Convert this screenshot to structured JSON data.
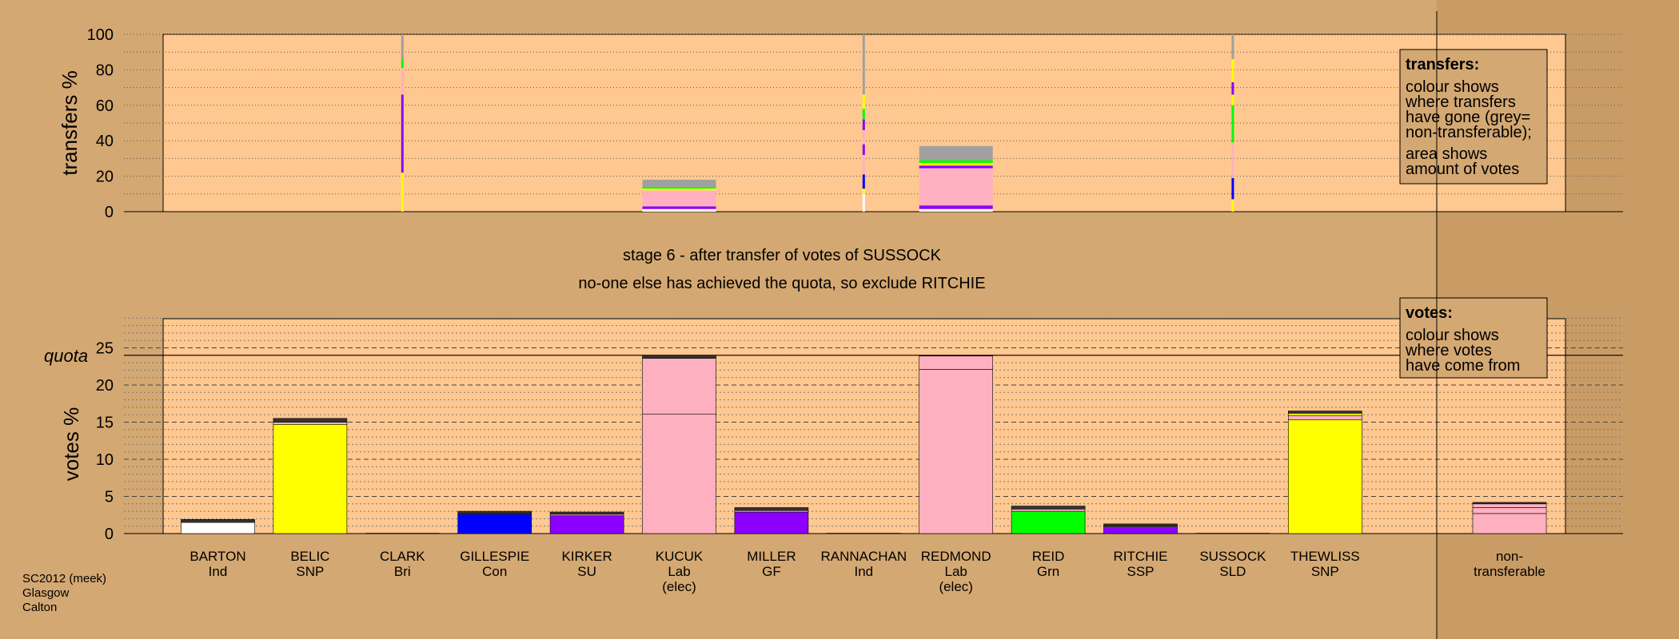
{
  "colors": {
    "background": "#d4a872",
    "plot_fill": "#ffc890",
    "Ind": "#ffffff",
    "SNP": "#ffff00",
    "Bri": "#000000",
    "Con": "#0000ff",
    "SU": "#8b00ff",
    "Lab": "#ffb0c0",
    "GF": "#8b00ff",
    "Grn": "#00ff00",
    "SSP": "#8b00ff",
    "SLD": "#ffcc00",
    "nontransferable": "#a0a0a0"
  },
  "chart_data": [
    {
      "type": "bar",
      "ylabel": "transfers %",
      "ylim": [
        0,
        100
      ],
      "yticks": [
        0,
        20,
        40,
        60,
        80,
        100
      ],
      "grid": true,
      "categories": [
        "BARTON",
        "BELIC",
        "CLARK",
        "GILLESPIE",
        "KIRKER",
        "KUCUK",
        "MILLER",
        "RANNACHAN",
        "REDMOND",
        "REID",
        "RITCHIE",
        "SUSSOCK",
        "THEWLISS"
      ],
      "bars": [
        {
          "candidate": "KUCUK",
          "segments": [
            {
              "value": 1.5,
              "color": "#ffffff"
            },
            {
              "value": 1.5,
              "color": "#8b00ff"
            },
            {
              "value": 9,
              "color": "#ffb0c0"
            },
            {
              "value": 1,
              "color": "#ffff00"
            },
            {
              "value": 1,
              "color": "#00ff00"
            },
            {
              "value": 4,
              "color": "#a0a0a0"
            }
          ]
        },
        {
          "candidate": "REDMOND",
          "segments": [
            {
              "value": 1.5,
              "color": "#ffffff"
            },
            {
              "value": 2,
              "color": "#8b00ff"
            },
            {
              "value": 21,
              "color": "#ffb0c0"
            },
            {
              "value": 1.5,
              "color": "#8b00ff"
            },
            {
              "value": 1.5,
              "color": "#ffff00"
            },
            {
              "value": 1.5,
              "color": "#00ff00"
            },
            {
              "value": 8,
              "color": "#a0a0a0"
            }
          ]
        }
      ],
      "lines": [
        {
          "candidate": "CLARK",
          "segments": [
            {
              "value": 22,
              "color": "#ffff00"
            },
            {
              "value": 44,
              "color": "#8b00ff"
            },
            {
              "value": 15,
              "color": "#ffb0c0"
            },
            {
              "value": 5,
              "color": "#00ff00"
            },
            {
              "value": 14,
              "color": "#a0a0a0"
            }
          ]
        },
        {
          "candidate": "RANNACHAN",
          "segments": [
            {
              "value": 10,
              "color": "#ffffff"
            },
            {
              "value": 3,
              "color": "#ffff00"
            },
            {
              "value": 8,
              "color": "#0000ff"
            },
            {
              "value": 11,
              "color": "#ffb0c0"
            },
            {
              "value": 6,
              "color": "#8b00ff"
            },
            {
              "value": 8,
              "color": "#ffb0c0"
            },
            {
              "value": 6,
              "color": "#8b00ff"
            },
            {
              "value": 6,
              "color": "#00ff00"
            },
            {
              "value": 8,
              "color": "#ffff00"
            },
            {
              "value": 34,
              "color": "#a0a0a0"
            }
          ]
        },
        {
          "candidate": "SUSSOCK",
          "segments": [
            {
              "value": 7,
              "color": "#ffff00"
            },
            {
              "value": 12,
              "color": "#0000ff"
            },
            {
              "value": 20,
              "color": "#ffb0c0"
            },
            {
              "value": 21,
              "color": "#00ff00"
            },
            {
              "value": 6,
              "color": "#ffff00"
            },
            {
              "value": 7,
              "color": "#8b00ff"
            },
            {
              "value": 13,
              "color": "#ffff00"
            },
            {
              "value": 14,
              "color": "#a0a0a0"
            }
          ]
        }
      ]
    },
    {
      "type": "bar",
      "ylabel": "votes %",
      "ylim": [
        0,
        29
      ],
      "yticks": [
        0,
        5,
        10,
        15,
        20,
        25
      ],
      "quota": 24,
      "quota_label": "quota",
      "grid": true,
      "categories": [
        {
          "name": "BARTON",
          "party": "Ind"
        },
        {
          "name": "BELIC",
          "party": "SNP"
        },
        {
          "name": "CLARK",
          "party": "Bri"
        },
        {
          "name": "GILLESPIE",
          "party": "Con"
        },
        {
          "name": "KIRKER",
          "party": "SU"
        },
        {
          "name": "KUCUK",
          "party": "Lab",
          "note": "(elec)"
        },
        {
          "name": "MILLER",
          "party": "GF"
        },
        {
          "name": "RANNACHAN",
          "party": "Ind"
        },
        {
          "name": "REDMOND",
          "party": "Lab",
          "note": "(elec)"
        },
        {
          "name": "REID",
          "party": "Grn"
        },
        {
          "name": "RITCHIE",
          "party": "SSP"
        },
        {
          "name": "SUSSOCK",
          "party": "SLD"
        },
        {
          "name": "THEWLISS",
          "party": "SNP"
        }
      ],
      "bars": [
        {
          "candidate": "BARTON",
          "segments": [
            {
              "value": 1.5,
              "color": "#ffffff"
            },
            {
              "value": 0.1,
              "color": "#ffb0c0"
            },
            {
              "value": 0.3,
              "color": "#333333"
            }
          ]
        },
        {
          "candidate": "BELIC",
          "segments": [
            {
              "value": 14.7,
              "color": "#ffff00"
            },
            {
              "value": 0.3,
              "color": "#ffb0c0"
            },
            {
              "value": 0.5,
              "color": "#333333"
            }
          ]
        },
        {
          "candidate": "CLARK",
          "segments": [
            {
              "value": 0.05,
              "color": "#000000"
            }
          ]
        },
        {
          "candidate": "GILLESPIE",
          "segments": [
            {
              "value": 2.6,
              "color": "#0000ff"
            },
            {
              "value": 0.1,
              "color": "#ffb0c0"
            },
            {
              "value": 0.3,
              "color": "#333333"
            }
          ]
        },
        {
          "candidate": "KIRKER",
          "segments": [
            {
              "value": 2.4,
              "color": "#8b00ff"
            },
            {
              "value": 0.2,
              "color": "#ffb0c0"
            },
            {
              "value": 0.3,
              "color": "#333333"
            }
          ]
        },
        {
          "candidate": "KUCUK",
          "segments": [
            {
              "value": 16.1,
              "color": "#ffb0c0"
            },
            {
              "value": 7.5,
              "color": "#ffb0c0"
            },
            {
              "value": 0.4,
              "color": "#333333"
            }
          ]
        },
        {
          "candidate": "MILLER",
          "segments": [
            {
              "value": 2.9,
              "color": "#8b00ff"
            },
            {
              "value": 0.2,
              "color": "#ffb0c0"
            },
            {
              "value": 0.4,
              "color": "#333333"
            }
          ]
        },
        {
          "candidate": "RANNACHAN",
          "segments": [
            {
              "value": 0.05,
              "color": "#000000"
            }
          ]
        },
        {
          "candidate": "REDMOND",
          "segments": [
            {
              "value": 22.1,
              "color": "#ffb0c0"
            },
            {
              "value": 1.8,
              "color": "#ffb0c0"
            },
            {
              "value": 0.1,
              "color": "#333333"
            }
          ]
        },
        {
          "candidate": "REID",
          "segments": [
            {
              "value": 3.0,
              "color": "#00ff00"
            },
            {
              "value": 0.3,
              "color": "#ffb0c0"
            },
            {
              "value": 0.4,
              "color": "#333333"
            }
          ]
        },
        {
          "candidate": "RITCHIE",
          "segments": [
            {
              "value": 0.9,
              "color": "#8b00ff"
            },
            {
              "value": 0.1,
              "color": "#ffb0c0"
            },
            {
              "value": 0.3,
              "color": "#333333"
            }
          ]
        },
        {
          "candidate": "SUSSOCK",
          "segments": [
            {
              "value": 0.05,
              "color": "#000000"
            }
          ]
        },
        {
          "candidate": "THEWLISS",
          "segments": [
            {
              "value": 15.3,
              "color": "#ffff00"
            },
            {
              "value": 0.6,
              "color": "#ffb0c0"
            },
            {
              "value": 0.3,
              "color": "#ffff00"
            },
            {
              "value": 0.3,
              "color": "#333333"
            }
          ]
        }
      ],
      "nontransferable": {
        "label_line1": "non-",
        "label_line2": "transferable",
        "segments": [
          {
            "value": 2.7,
            "color": "#ffb0c0"
          },
          {
            "value": 0.8,
            "color": "#ffb0c0"
          },
          {
            "value": 0.5,
            "color": "#ffb0c0"
          },
          {
            "value": 0.2,
            "color": "#333333"
          }
        ]
      }
    }
  ],
  "stage_title": "stage 6 - after transfer of votes of SUSSOCK",
  "stage_subtitle": "no-one else has achieved the quota, so exclude RITCHIE",
  "legend_transfers": {
    "title": "transfers:",
    "lines": [
      "colour shows",
      "where transfers",
      "have gone (grey=",
      "non-transferable);"
    ],
    "lines2": [
      "area shows",
      "amount of votes"
    ]
  },
  "legend_votes": {
    "title": "votes:",
    "lines": [
      "colour shows",
      "where votes",
      "have come from"
    ]
  },
  "footer": {
    "line1": "SC2012 (meek)",
    "line2": "Glasgow",
    "line3": "Calton"
  }
}
